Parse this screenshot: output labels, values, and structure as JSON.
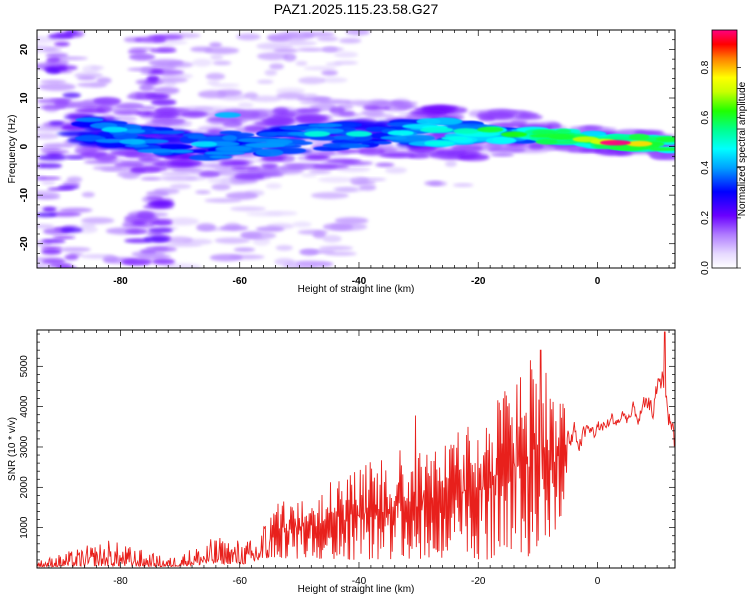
{
  "title": "PAZ1.2025.115.23.58.G27",
  "colors": {
    "snr_line": "#e8201c",
    "axis": "#000000",
    "spectrum_low": "#d9c9ff",
    "spectrum_mid": "#5a1cff",
    "spectrum_high": "#ff2060"
  },
  "chart_data": [
    {
      "type": "heatmap",
      "title": "PAZ1.2025.115.23.58.G27",
      "xlabel": "Height of straight line (km)",
      "ylabel": "Frequency (Hz)",
      "xlim": [
        -94,
        13
      ],
      "ylim": [
        -25,
        24
      ],
      "xticks": [
        -80,
        -60,
        -40,
        -20,
        0
      ],
      "yticks": [
        -20,
        -10,
        0,
        10,
        20
      ],
      "grid": false,
      "colorbar": {
        "label": "Normalized spectral amplitude",
        "range": [
          0,
          0.95
        ],
        "ticks": [
          "0.0",
          "0.2",
          "0.4",
          "0.6",
          "0.8"
        ],
        "colormap": "rainbow (white-violet-blue-cyan-green-yellow-red-magenta)"
      },
      "ridge_center_freq_hz": [
        {
          "x": -86,
          "y": 3.5
        },
        {
          "x": -80,
          "y": 2
        },
        {
          "x": -74,
          "y": 1
        },
        {
          "x": -66,
          "y": 0
        },
        {
          "x": -56,
          "y": 1
        },
        {
          "x": -46,
          "y": 2
        },
        {
          "x": -36,
          "y": 2.5
        },
        {
          "x": -26,
          "y": 3
        },
        {
          "x": -16,
          "y": 2.5
        },
        {
          "x": -6,
          "y": 2
        },
        {
          "x": 2,
          "y": 1
        },
        {
          "x": 12,
          "y": 0.5
        }
      ],
      "peak_amplitude_region": {
        "x_range": [
          0,
          6
        ],
        "freq_hz": 0.8,
        "amplitude": 0.95
      }
    },
    {
      "type": "line",
      "series_name": "SNR",
      "xlabel": "Height of straight line (km)",
      "ylabel": "SNR (10 * v/v)",
      "xlim": [
        -94,
        13
      ],
      "ylim": [
        0,
        5900
      ],
      "xticks": [
        -80,
        -60,
        -40,
        -20,
        0
      ],
      "yticks": [
        1000,
        2000,
        3000,
        4000,
        5000
      ],
      "grid": false,
      "envelope": [
        {
          "x": -94,
          "low": 30,
          "high": 180
        },
        {
          "x": -82,
          "low": 50,
          "high": 720
        },
        {
          "x": -72,
          "low": 30,
          "high": 250
        },
        {
          "x": -64,
          "low": 100,
          "high": 780
        },
        {
          "x": -58,
          "low": 100,
          "high": 720
        },
        {
          "x": -55,
          "low": 250,
          "high": 1500
        },
        {
          "x": -45,
          "low": 200,
          "high": 2200
        },
        {
          "x": -35,
          "low": 200,
          "high": 2900
        },
        {
          "x": -25,
          "low": 250,
          "high": 3200
        },
        {
          "x": -18,
          "low": 200,
          "high": 4000
        },
        {
          "x": -14,
          "low": 250,
          "high": 4700
        },
        {
          "x": -10,
          "low": 300,
          "high": 5400
        },
        {
          "x": -6,
          "low": 1200,
          "high": 4400
        },
        {
          "x": -2,
          "low": 2300,
          "high": 4100
        },
        {
          "x": 4,
          "low": 2900,
          "high": 4400
        },
        {
          "x": 9,
          "low": 2700,
          "high": 4900
        },
        {
          "x": 11,
          "low": 3300,
          "high": 5900
        },
        {
          "x": 13,
          "low": 1600,
          "high": 4300
        }
      ],
      "notable_peaks": [
        {
          "x": -30.5,
          "y": 3780
        },
        {
          "x": -13.5,
          "y": 4550
        },
        {
          "x": -9.5,
          "y": 5400
        },
        {
          "x": 11.3,
          "y": 5850
        }
      ]
    }
  ]
}
